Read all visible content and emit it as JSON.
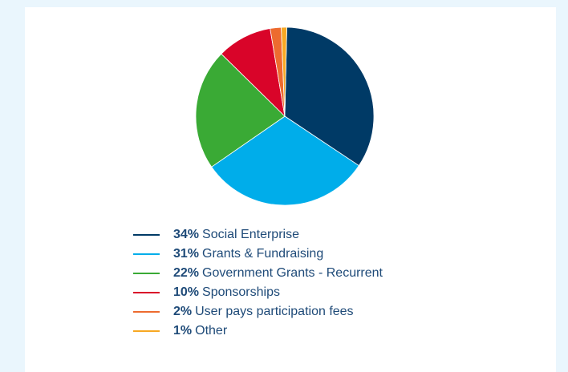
{
  "chart_data": {
    "type": "pie",
    "title": "",
    "series": [
      {
        "name": "Social Enterprise",
        "percent_label": "34%",
        "value": 34,
        "color": "#003a66"
      },
      {
        "name": "Grants & Fundraising",
        "percent_label": "31%",
        "value": 31,
        "color": "#00adea"
      },
      {
        "name": "Government Grants - Recurrent",
        "percent_label": "22%",
        "value": 22,
        "color": "#3aaa35"
      },
      {
        "name": "Sponsorships",
        "percent_label": "10%",
        "value": 10,
        "color": "#d90429"
      },
      {
        "name": "User pays participation fees",
        "percent_label": "2%",
        "value": 2,
        "color": "#ed6b2f"
      },
      {
        "name": "Other",
        "percent_label": "1%",
        "value": 1,
        "color": "#f7a823"
      }
    ],
    "legend_position": "bottom"
  }
}
